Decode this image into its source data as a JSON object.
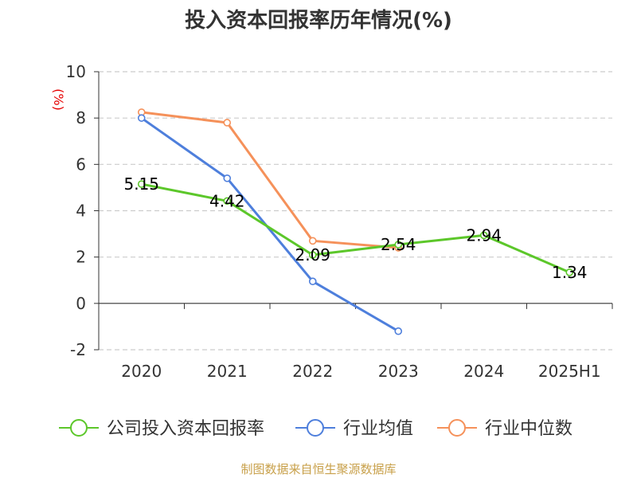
{
  "chart_data": {
    "type": "line",
    "title": "投入资本回报率历年情况(%)",
    "ylabel": "(%)",
    "xlabel": "",
    "categories": [
      "2020",
      "2021",
      "2022",
      "2023",
      "2024",
      "2025H1"
    ],
    "y_ticks": [
      "-2",
      "0",
      "2",
      "4",
      "6",
      "8",
      "10"
    ],
    "ylim": [
      -2,
      10
    ],
    "grid": true,
    "legend_position": "bottom",
    "series": [
      {
        "name": "公司投入资本回报率",
        "color": "#5cc72a",
        "values": [
          5.15,
          4.42,
          2.09,
          2.54,
          2.94,
          1.34
        ],
        "labels": [
          "5.15",
          "4.42",
          "2.09",
          "2.54",
          "2.94",
          "1.34"
        ]
      },
      {
        "name": "行业均值",
        "color": "#4e7fdc",
        "values": [
          8.0,
          5.4,
          0.95,
          -1.2,
          null,
          null
        ]
      },
      {
        "name": "行业中位数",
        "color": "#f5915a",
        "values": [
          8.25,
          7.8,
          2.7,
          2.4,
          null,
          null
        ]
      }
    ],
    "source": "制图数据来自恒生聚源数据库"
  }
}
